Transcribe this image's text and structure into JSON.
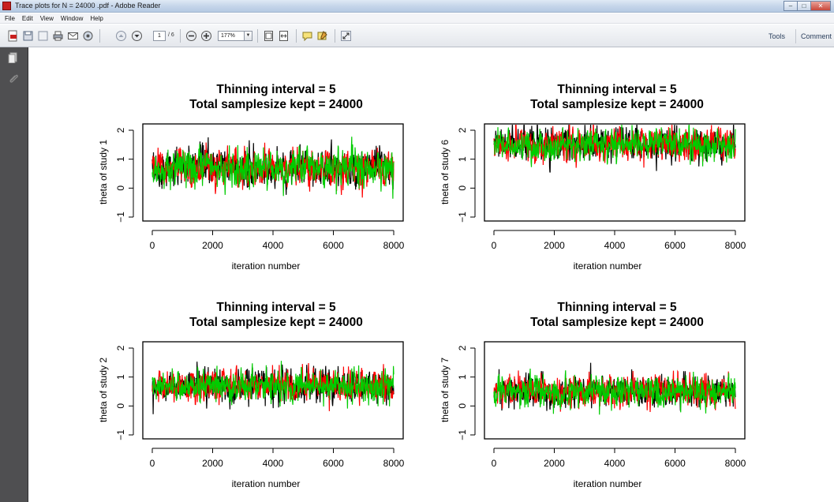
{
  "window": {
    "title": "Trace plots for N = 24000 .pdf - Adobe Reader"
  },
  "menu": [
    "File",
    "Edit",
    "View",
    "Window",
    "Help"
  ],
  "toolbar": {
    "icons": [
      "create-pdf-icon",
      "save-icon",
      "print-icon",
      "email-icon",
      "collaborate-icon",
      "page-up-icon",
      "page-down-icon",
      "zoom-out-icon",
      "zoom-in-icon",
      "fit-page-icon",
      "fullscreen-icon",
      "comment-icon",
      "highlight-icon",
      "expand-icon"
    ],
    "page_current": "1",
    "page_total": "/ 6",
    "zoom": "177%",
    "tools": "Tools",
    "comment": "Comment"
  },
  "chart_data": [
    {
      "type": "line",
      "title": [
        "Thinning interval =  5",
        "Total samplesize kept =  24000"
      ],
      "ylabel": "theta  of study  1",
      "xlabel": "iteration number",
      "xlim": [
        0,
        8000
      ],
      "ylim": [
        -1,
        2
      ],
      "xticks": [
        "0",
        "2000",
        "4000",
        "6000",
        "8000"
      ],
      "yticks": [
        "-1",
        "0",
        "1",
        "2"
      ],
      "series_colors": [
        "#000000",
        "#ff0000",
        "#00cc00"
      ],
      "center": 0.7,
      "spread": 0.3
    },
    {
      "type": "line",
      "title": [
        "Thinning interval =  5",
        "Total samplesize kept =  24000"
      ],
      "ylabel": "theta  of study  6",
      "xlabel": "iteration number",
      "xlim": [
        0,
        8000
      ],
      "ylim": [
        -1,
        2
      ],
      "xticks": [
        "0",
        "2000",
        "4000",
        "6000",
        "8000"
      ],
      "yticks": [
        "-1",
        "0",
        "1",
        "2"
      ],
      "series_colors": [
        "#000000",
        "#ff0000",
        "#00cc00"
      ],
      "center": 1.5,
      "spread": 0.25
    },
    {
      "type": "line",
      "title": [
        "Thinning interval =  5",
        "Total samplesize kept =  24000"
      ],
      "ylabel": "theta  of study  2",
      "xlabel": "iteration number",
      "xlim": [
        0,
        8000
      ],
      "ylim": [
        -1,
        2
      ],
      "xticks": [
        "0",
        "2000",
        "4000",
        "6000",
        "8000"
      ],
      "yticks": [
        "-1",
        "0",
        "1",
        "2"
      ],
      "series_colors": [
        "#000000",
        "#ff0000",
        "#00cc00"
      ],
      "center": 0.7,
      "spread": 0.25
    },
    {
      "type": "line",
      "title": [
        "Thinning interval =  5",
        "Total samplesize kept =  24000"
      ],
      "ylabel": "theta  of study  7",
      "xlabel": "iteration number",
      "xlim": [
        0,
        8000
      ],
      "ylim": [
        -1,
        2
      ],
      "xticks": [
        "0",
        "2000",
        "4000",
        "6000",
        "8000"
      ],
      "yticks": [
        "-1",
        "0",
        "1",
        "2"
      ],
      "series_colors": [
        "#000000",
        "#ff0000",
        "#00cc00"
      ],
      "center": 0.5,
      "spread": 0.25
    }
  ]
}
